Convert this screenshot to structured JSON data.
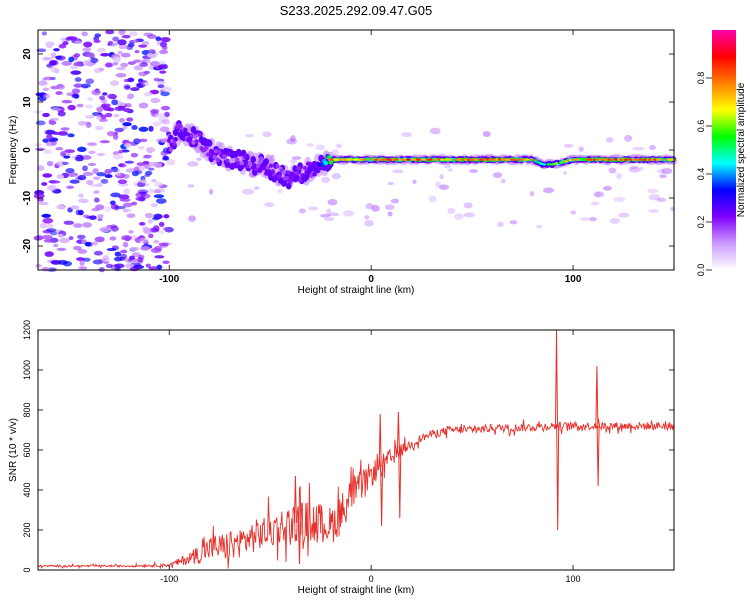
{
  "title": "S233.2025.292.09.47.G05",
  "chart_data": [
    {
      "type": "heatmap",
      "name": "spectrogram",
      "title": "S233.2025.292.09.47.G05",
      "xlabel": "Height of straight line (km)",
      "ylabel": "Frequency (Hz)",
      "xlim": [
        -165,
        150
      ],
      "ylim": [
        -25,
        25
      ],
      "xticks": [
        -100,
        0,
        100
      ],
      "yticks": [
        20,
        10,
        0,
        -10,
        -20
      ],
      "colorbar": {
        "label": "Normalized spectral amplitude",
        "range": [
          0,
          1
        ],
        "ticks": [
          0.0,
          0.2,
          0.4,
          0.6,
          0.8
        ],
        "colors": [
          "#ffffff",
          "#cc99ff",
          "#8000ff",
          "#0000ff",
          "#00ffff",
          "#00ff00",
          "#ffff00",
          "#ff8000",
          "#ff0000",
          "#ff00aa"
        ]
      },
      "ridge": {
        "x": [
          -100,
          -95,
          -90,
          -85,
          -80,
          -75,
          -70,
          -65,
          -60,
          -55,
          -50,
          -45,
          -40,
          -35,
          -30,
          -25,
          -20,
          -10,
          0,
          10,
          20,
          40,
          60,
          80,
          85,
          90,
          100,
          110,
          120,
          130,
          140,
          150
        ],
        "frequency": [
          1,
          4,
          3,
          2,
          0,
          -1,
          -2,
          -2,
          -3,
          -3,
          -4,
          -5,
          -6,
          -5,
          -4,
          -3,
          -2,
          -2,
          -2,
          -2,
          -2,
          -2,
          -2,
          -2,
          -3,
          -3,
          -2,
          -2,
          -2,
          -2,
          -2,
          -2
        ],
        "amplitude": [
          0.3,
          0.35,
          0.3,
          0.3,
          0.3,
          0.3,
          0.35,
          0.3,
          0.3,
          0.3,
          0.35,
          0.3,
          0.3,
          0.3,
          0.3,
          0.4,
          0.8,
          0.75,
          0.8,
          0.85,
          0.85,
          0.8,
          0.85,
          0.8,
          0.5,
          0.6,
          0.8,
          0.85,
          0.85,
          0.85,
          0.85,
          0.8
        ]
      },
      "noise_region": {
        "x": [
          -165,
          -100
        ],
        "frequency": [
          -25,
          25
        ]
      }
    },
    {
      "type": "line",
      "name": "snr",
      "xlabel": "Height of straight line (km)",
      "ylabel": "SNR (10 * v/v)",
      "xlim": [
        -165,
        150
      ],
      "ylim": [
        0,
        1200
      ],
      "xticks": [
        -100,
        0,
        100
      ],
      "yticks": [
        0,
        200,
        400,
        600,
        800,
        1000,
        1200
      ],
      "series": [
        {
          "name": "SNR",
          "color": "#e8302a",
          "x": [
            -165,
            -140,
            -120,
            -100,
            -95,
            -90,
            -85,
            -80,
            -70,
            -60,
            -50,
            -40,
            -30,
            -20,
            -15,
            -10,
            -5,
            0,
            5,
            10,
            15,
            20,
            25,
            30,
            40,
            50,
            60,
            70,
            80,
            90,
            100,
            110,
            120,
            130,
            140,
            150
          ],
          "y": [
            20,
            20,
            20,
            25,
            40,
            60,
            80,
            110,
            120,
            160,
            200,
            230,
            250,
            220,
            280,
            380,
            420,
            480,
            520,
            560,
            600,
            630,
            660,
            680,
            700,
            700,
            710,
            710,
            715,
            720,
            720,
            720,
            720,
            720,
            720,
            720
          ],
          "noise": [
            6,
            6,
            6,
            10,
            25,
            40,
            60,
            80,
            90,
            100,
            110,
            120,
            130,
            120,
            130,
            110,
            90,
            80,
            70,
            60,
            40,
            30,
            25,
            25,
            25,
            25,
            25,
            25,
            25,
            25,
            25,
            25,
            25,
            25,
            25,
            25
          ]
        }
      ],
      "spikes": [
        {
          "x": 91.8,
          "y": 1200
        },
        {
          "x": 92.4,
          "y": 200
        },
        {
          "x": 111.8,
          "y": 1020
        },
        {
          "x": 112.4,
          "y": 420
        },
        {
          "x": 4.5,
          "y": 780
        },
        {
          "x": 5.2,
          "y": 220
        },
        {
          "x": 13.5,
          "y": 790
        },
        {
          "x": 14.2,
          "y": 260
        },
        {
          "x": -37.5,
          "y": 470
        },
        {
          "x": -35.5,
          "y": 30
        }
      ]
    }
  ]
}
